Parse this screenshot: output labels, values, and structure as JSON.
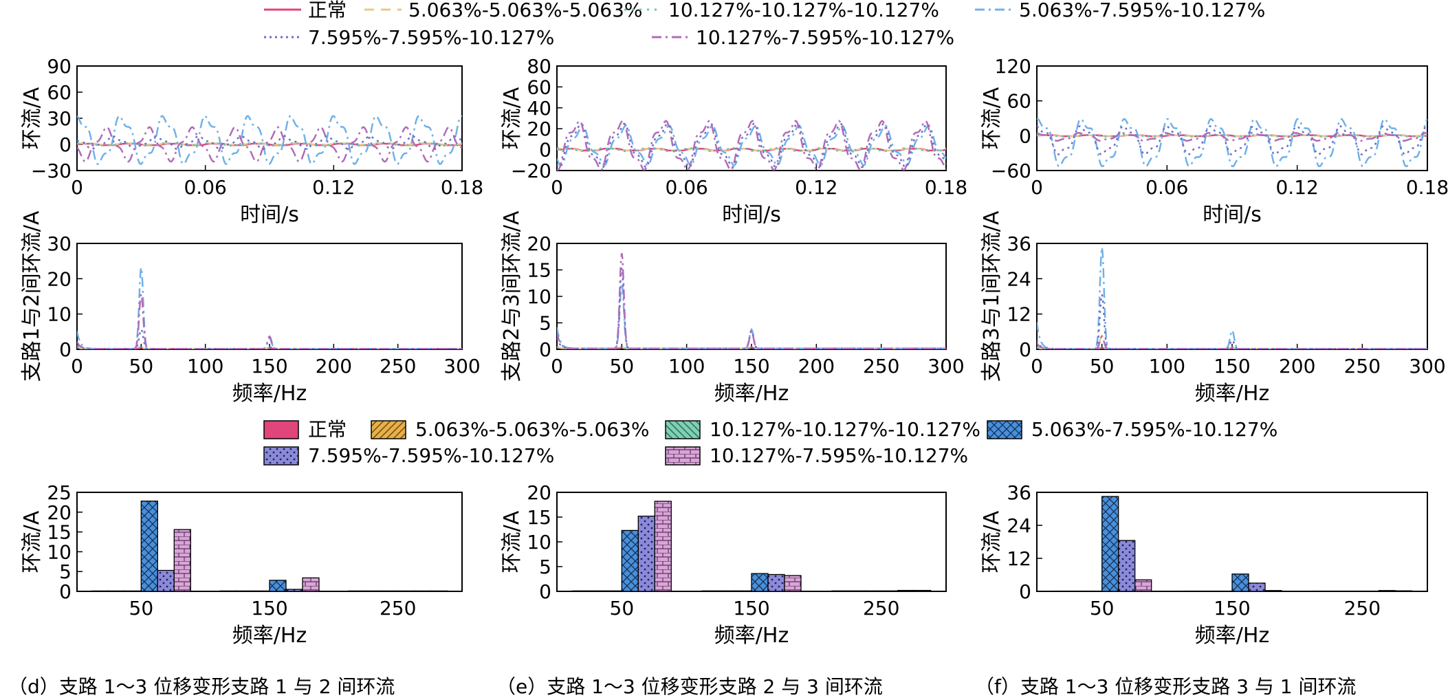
{
  "line_legend": {
    "entries": [
      {
        "label": "正常",
        "color": "#e0457b",
        "dash": "solid"
      },
      {
        "label": "5.063%-5.063%-5.063%",
        "color": "#e8c98a",
        "dash": "dash"
      },
      {
        "label": "10.127%-10.127%-10.127%",
        "color": "#6fbfb0",
        "dash": "dot"
      },
      {
        "label": "5.063%-7.595%-10.127%",
        "color": "#6fb1e8",
        "dash": "dashdot"
      },
      {
        "label": "7.595%-7.595%-10.127%",
        "color": "#6b6fc9",
        "dash": "dot"
      },
      {
        "label": "10.127%-7.595%-10.127%",
        "color": "#b06bb8",
        "dash": "dashdot"
      }
    ]
  },
  "bar_legend": {
    "entries": [
      {
        "label": "正常",
        "color": "#e0457b",
        "pattern": "solid"
      },
      {
        "label": "5.063%-5.063%-5.063%",
        "color": "#e8b04a",
        "pattern": "hatch"
      },
      {
        "label": "10.127%-10.127%-10.127%",
        "color": "#7fcfb6",
        "pattern": "hatch"
      },
      {
        "label": "5.063%-7.595%-10.127%",
        "color": "#4a8fd8",
        "pattern": "cross"
      },
      {
        "label": "7.595%-7.595%-10.127%",
        "color": "#8a8ad8",
        "pattern": "dots"
      },
      {
        "label": "10.127%-7.595%-10.127%",
        "color": "#d0a0d0",
        "pattern": "brick"
      }
    ]
  },
  "captions": [
    "（d）支路 1～3 位移变形支路 1 与 2 间环流",
    "（e）支路 1～3 位移变形支路 2 与 3 间环流",
    "（f）支路 1～3 位移变形支路 3 与 1 间环流"
  ],
  "chart_data": [
    {
      "type": "line",
      "column": 0,
      "xlabel": "时间/s",
      "ylabel": "环流/A",
      "xlim": [
        0,
        0.18
      ],
      "ylim": [
        -30,
        90
      ],
      "xticks": [
        0,
        0.06,
        0.12,
        0.18
      ],
      "xtick_labels": [
        "0",
        "0.06",
        "0.12",
        "0.18"
      ],
      "yticks": [
        -30,
        0,
        30,
        60,
        90
      ],
      "ytick_labels": [
        "−30",
        "0",
        "30",
        "60",
        "90"
      ],
      "series": [
        {
          "name": "正常",
          "amplitude": 1,
          "offset": 0,
          "phase": 0
        },
        {
          "name": "5.063%-5.063%-5.063%",
          "amplitude": 1,
          "offset": 0.5,
          "phase": 0.3
        },
        {
          "name": "10.127%-10.127%-10.127%",
          "amplitude": 1.5,
          "offset": 0,
          "phase": 0.6
        },
        {
          "name": "5.063%-7.595%-10.127%",
          "amplitude": 25,
          "offset": 5,
          "phase": 1.2
        },
        {
          "name": "7.595%-7.595%-10.127%",
          "amplitude": 6,
          "offset": 2,
          "phase": 2.4
        },
        {
          "name": "10.127%-7.595%-10.127%",
          "amplitude": 16,
          "offset": 0,
          "phase": 3.6
        }
      ]
    },
    {
      "type": "line",
      "column": 1,
      "xlabel": "时间/s",
      "ylabel": "环流/A",
      "xlim": [
        0,
        0.18
      ],
      "ylim": [
        -20,
        80
      ],
      "xticks": [
        0,
        0.06,
        0.12,
        0.18
      ],
      "xtick_labels": [
        "0",
        "0.06",
        "0.12",
        "0.18"
      ],
      "yticks": [
        -20,
        0,
        20,
        40,
        60,
        80
      ],
      "ytick_labels": [
        "−20",
        "0",
        "20",
        "40",
        "60",
        "80"
      ],
      "series": [
        {
          "name": "正常",
          "amplitude": 1,
          "offset": 0,
          "phase": 0
        },
        {
          "name": "5.063%-5.063%-5.063%",
          "amplitude": 1,
          "offset": 0,
          "phase": 0.3
        },
        {
          "name": "10.127%-10.127%-10.127%",
          "amplitude": 1.5,
          "offset": 0,
          "phase": 0.6
        },
        {
          "name": "5.063%-7.595%-10.127%",
          "amplitude": 16,
          "offset": 4,
          "phase": 4.4
        },
        {
          "name": "7.595%-7.595%-10.127%",
          "amplitude": 18,
          "offset": 4,
          "phase": 4.7
        },
        {
          "name": "10.127%-7.595%-10.127%",
          "amplitude": 21,
          "offset": 4,
          "phase": 5.0
        }
      ]
    },
    {
      "type": "line",
      "column": 2,
      "xlabel": "时间/s",
      "ylabel": "环流/A",
      "xlim": [
        0,
        0.18
      ],
      "ylim": [
        -60,
        120
      ],
      "xticks": [
        0,
        0.06,
        0.12,
        0.18
      ],
      "xtick_labels": [
        "0",
        "0.06",
        "0.12",
        "0.18"
      ],
      "yticks": [
        -60,
        0,
        60,
        120
      ],
      "ytick_labels": [
        "−60",
        "0",
        "60",
        "120"
      ],
      "series": [
        {
          "name": "正常",
          "amplitude": 1,
          "offset": 0,
          "phase": 0
        },
        {
          "name": "5.063%-5.063%-5.063%",
          "amplitude": 1,
          "offset": 0,
          "phase": 0.3
        },
        {
          "name": "10.127%-10.127%-10.127%",
          "amplitude": 1.5,
          "offset": 0,
          "phase": 0.6
        },
        {
          "name": "5.063%-7.595%-10.127%",
          "amplitude": 38,
          "offset": -12,
          "phase": 1.0
        },
        {
          "name": "7.595%-7.595%-10.127%",
          "amplitude": 22,
          "offset": -8,
          "phase": 1.2
        },
        {
          "name": "10.127%-7.595%-10.127%",
          "amplitude": 6,
          "offset": -2,
          "phase": 1.4
        }
      ]
    },
    {
      "type": "line",
      "column": 0,
      "xlabel": "频率/Hz",
      "ylabel": "支路1与2间环流/A",
      "xlim": [
        0,
        300
      ],
      "ylim": [
        0,
        30
      ],
      "xticks": [
        0,
        50,
        100,
        150,
        200,
        250,
        300
      ],
      "xtick_labels": [
        "0",
        "50",
        "100",
        "150",
        "200",
        "250",
        "300"
      ],
      "yticks": [
        0,
        10,
        20,
        30
      ],
      "ytick_labels": [
        "0",
        "10",
        "20",
        "30"
      ],
      "series": [
        {
          "name": "正常",
          "dc": 0.5,
          "h1": 0.3,
          "h3": 0.2
        },
        {
          "name": "5.063%-5.063%-5.063%",
          "dc": 0.5,
          "h1": 0.4,
          "h3": 0.2
        },
        {
          "name": "10.127%-10.127%-10.127%",
          "dc": 0.5,
          "h1": 0.5,
          "h3": 0.2
        },
        {
          "name": "5.063%-7.595%-10.127%",
          "dc": 5,
          "h1": 23,
          "h3": 3
        },
        {
          "name": "7.595%-7.595%-10.127%",
          "dc": 1,
          "h1": 5.5,
          "h3": 0.5
        },
        {
          "name": "10.127%-7.595%-10.127%",
          "dc": 2,
          "h1": 15.5,
          "h3": 3.5
        }
      ]
    },
    {
      "type": "line",
      "column": 1,
      "xlabel": "频率/Hz",
      "ylabel": "支路2与3间环流/A",
      "xlim": [
        0,
        300
      ],
      "ylim": [
        0,
        20
      ],
      "xticks": [
        0,
        50,
        100,
        150,
        200,
        250,
        300
      ],
      "xtick_labels": [
        "0",
        "50",
        "100",
        "150",
        "200",
        "250",
        "300"
      ],
      "yticks": [
        0,
        5,
        10,
        15,
        20
      ],
      "ytick_labels": [
        "0",
        "5",
        "10",
        "15",
        "20"
      ],
      "series": [
        {
          "name": "正常",
          "dc": 0.3,
          "h1": 0.2,
          "h3": 0.2
        },
        {
          "name": "5.063%-5.063%-5.063%",
          "dc": 0.3,
          "h1": 0.2,
          "h3": 0.2
        },
        {
          "name": "10.127%-10.127%-10.127%",
          "dc": 0.3,
          "h1": 0.2,
          "h3": 0.2
        },
        {
          "name": "5.063%-7.595%-10.127%",
          "dc": 4,
          "h1": 12.3,
          "h3": 3.6
        },
        {
          "name": "7.595%-7.595%-10.127%",
          "dc": 2,
          "h1": 15.2,
          "h3": 3.4
        },
        {
          "name": "10.127%-7.595%-10.127%",
          "dc": 3,
          "h1": 18,
          "h3": 3.2
        }
      ]
    },
    {
      "type": "line",
      "column": 2,
      "xlabel": "频率/Hz",
      "ylabel": "支路3与1间环流/A",
      "xlim": [
        0,
        300
      ],
      "ylim": [
        0,
        36
      ],
      "xticks": [
        0,
        50,
        100,
        150,
        200,
        250,
        300
      ],
      "xtick_labels": [
        "0",
        "50",
        "100",
        "150",
        "200",
        "250",
        "300"
      ],
      "yticks": [
        0,
        12,
        24,
        36
      ],
      "ytick_labels": [
        "0",
        "12",
        "24",
        "36"
      ],
      "series": [
        {
          "name": "正常",
          "dc": 0.5,
          "h1": 0.3,
          "h3": 0.2
        },
        {
          "name": "5.063%-5.063%-5.063%",
          "dc": 0.5,
          "h1": 4.5,
          "h3": 0.3
        },
        {
          "name": "10.127%-10.127%-10.127%",
          "dc": 0.5,
          "h1": 0.5,
          "h3": 0.2
        },
        {
          "name": "5.063%-7.595%-10.127%",
          "dc": 9,
          "h1": 34.5,
          "h3": 6.3
        },
        {
          "name": "7.595%-7.595%-10.127%",
          "dc": 3,
          "h1": 18.5,
          "h3": 3
        },
        {
          "name": "10.127%-7.595%-10.127%",
          "dc": 2,
          "h1": 4.2,
          "h3": 0.5
        }
      ]
    },
    {
      "type": "bar",
      "column": 0,
      "xlabel": "频率/Hz",
      "ylabel": "环流/A",
      "categories": [
        "50",
        "150",
        "250"
      ],
      "ylim": [
        0,
        25
      ],
      "yticks": [
        0,
        5,
        10,
        15,
        20,
        25
      ],
      "ytick_labels": [
        "0",
        "5",
        "10",
        "15",
        "20",
        "25"
      ],
      "series": [
        {
          "name": "正常",
          "values": [
            0.1,
            0.1,
            0.1
          ]
        },
        {
          "name": "5.063%-5.063%-5.063%",
          "values": [
            0.1,
            0.1,
            0.1
          ]
        },
        {
          "name": "10.127%-10.127%-10.127%",
          "values": [
            0.1,
            0.1,
            0.1
          ]
        },
        {
          "name": "5.063%-7.595%-10.127%",
          "values": [
            22.8,
            2.8,
            0.1
          ]
        },
        {
          "name": "7.595%-7.595%-10.127%",
          "values": [
            5.3,
            0.5,
            0.1
          ]
        },
        {
          "name": "10.127%-7.595%-10.127%",
          "values": [
            15.6,
            3.4,
            0.1
          ]
        }
      ]
    },
    {
      "type": "bar",
      "column": 1,
      "xlabel": "频率/Hz",
      "ylabel": "环流/A",
      "categories": [
        "50",
        "150",
        "250"
      ],
      "ylim": [
        0,
        20
      ],
      "yticks": [
        0,
        5,
        10,
        15,
        20
      ],
      "ytick_labels": [
        "0",
        "5",
        "10",
        "15",
        "20"
      ],
      "series": [
        {
          "name": "正常",
          "values": [
            0.1,
            0.1,
            0.1
          ]
        },
        {
          "name": "5.063%-5.063%-5.063%",
          "values": [
            0.1,
            0.1,
            0.1
          ]
        },
        {
          "name": "10.127%-10.127%-10.127%",
          "values": [
            0.1,
            0.1,
            0.1
          ]
        },
        {
          "name": "5.063%-7.595%-10.127%",
          "values": [
            12.3,
            3.6,
            0.1
          ]
        },
        {
          "name": "7.595%-7.595%-10.127%",
          "values": [
            15.2,
            3.4,
            0.2
          ]
        },
        {
          "name": "10.127%-7.595%-10.127%",
          "values": [
            18.2,
            3.2,
            0.2
          ]
        }
      ]
    },
    {
      "type": "bar",
      "column": 2,
      "xlabel": "频率/Hz",
      "ylabel": "环流/A",
      "categories": [
        "50",
        "150",
        "250"
      ],
      "ylim": [
        0,
        36
      ],
      "yticks": [
        0,
        12,
        24,
        36
      ],
      "ytick_labels": [
        "0",
        "12",
        "24",
        "36"
      ],
      "series": [
        {
          "name": "正常",
          "values": [
            0.1,
            0.1,
            0.1
          ]
        },
        {
          "name": "5.063%-5.063%-5.063%",
          "values": [
            0.1,
            0.1,
            0.1
          ]
        },
        {
          "name": "10.127%-10.127%-10.127%",
          "values": [
            0.1,
            0.1,
            0.1
          ]
        },
        {
          "name": "5.063%-7.595%-10.127%",
          "values": [
            34.5,
            6.3,
            0.1
          ]
        },
        {
          "name": "7.595%-7.595%-10.127%",
          "values": [
            18.5,
            3.0,
            0.3
          ]
        },
        {
          "name": "10.127%-7.595%-10.127%",
          "values": [
            4.2,
            0.3,
            0.2
          ]
        }
      ]
    }
  ]
}
